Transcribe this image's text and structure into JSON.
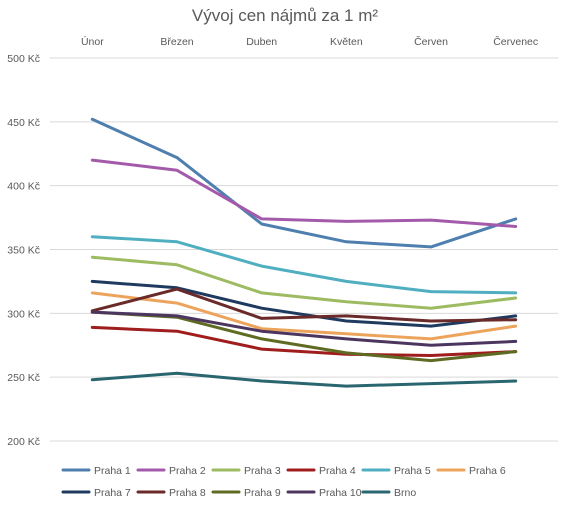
{
  "chart_data": {
    "type": "line",
    "title": "Vývoj cen nájmů za 1 m²",
    "xlabel": "",
    "ylabel": "",
    "categories": [
      "Únor",
      "Březen",
      "Duben",
      "Květen",
      "Červen",
      "Červenec"
    ],
    "ylim": [
      200,
      500
    ],
    "yticks": [
      {
        "value": 200,
        "label": "200 Kč"
      },
      {
        "value": 250,
        "label": "250 Kč"
      },
      {
        "value": 300,
        "label": "300 Kč"
      },
      {
        "value": 350,
        "label": "350 Kč"
      },
      {
        "value": 400,
        "label": "400 Kč"
      },
      {
        "value": 450,
        "label": "450 Kč"
      },
      {
        "value": 500,
        "label": "500 Kč"
      }
    ],
    "grid": true,
    "x_axis_position": "top",
    "legend_position": "bottom",
    "series": [
      {
        "name": "Praha 1",
        "color": "#4e7fae",
        "values": [
          452,
          422,
          370,
          356,
          352,
          374
        ]
      },
      {
        "name": "Praha 2",
        "color": "#a35aab",
        "values": [
          420,
          412,
          374,
          372,
          373,
          368
        ]
      },
      {
        "name": "Praha 3",
        "color": "#9dbb61",
        "values": [
          344,
          338,
          316,
          309,
          304,
          312
        ]
      },
      {
        "name": "Praha 4",
        "color": "#a01d1d",
        "values": [
          289,
          286,
          272,
          268,
          267,
          270
        ]
      },
      {
        "name": "Praha 5",
        "color": "#4fafc0",
        "values": [
          360,
          356,
          337,
          325,
          317,
          316
        ]
      },
      {
        "name": "Praha 6",
        "color": "#eca45c",
        "values": [
          316,
          308,
          288,
          284,
          280,
          290
        ]
      },
      {
        "name": "Praha 7",
        "color": "#1f3a5f",
        "values": [
          325,
          320,
          304,
          294,
          290,
          298
        ]
      },
      {
        "name": "Praha 8",
        "color": "#6b2a2a",
        "values": [
          302,
          319,
          296,
          298,
          294,
          295
        ]
      },
      {
        "name": "Praha 9",
        "color": "#5f6b22",
        "values": [
          301,
          297,
          280,
          269,
          263,
          270
        ]
      },
      {
        "name": "Praha 10",
        "color": "#4c365f",
        "values": [
          301,
          298,
          286,
          280,
          275,
          278
        ]
      },
      {
        "name": "Brno",
        "color": "#2a6670",
        "values": [
          248,
          253,
          247,
          243,
          245,
          247
        ]
      }
    ]
  }
}
